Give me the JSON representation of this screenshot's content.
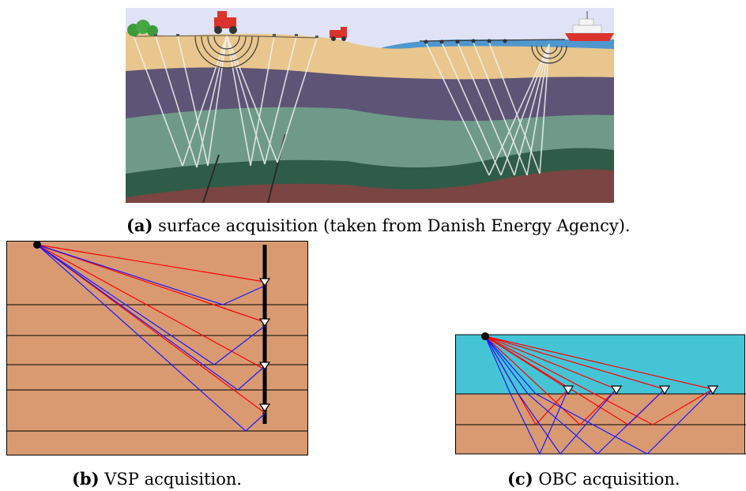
{
  "figures": {
    "a": {
      "label": "(a)",
      "text": "surface acquisition (taken from Danish Energy Agency)."
    },
    "b": {
      "label": "(b)",
      "text": "VSP acquisition."
    },
    "c": {
      "label": "(c)",
      "text": "OBC acquisition."
    }
  },
  "colors": {
    "sky": "#dfe3f5",
    "sea": "#4f97cf",
    "sand": "#e8c68d",
    "purple": "#5e5476",
    "green": "#6f9a89",
    "dark_green": "#2f5c48",
    "red_earth": "#7a4542",
    "ray_white": "#f2f2f2",
    "earth_brown": "#d99a72",
    "water_cyan": "#45c4d6",
    "ray_red": "#ff0000",
    "ray_blue": "#1a1aff"
  },
  "icons": [
    "tractor-icon",
    "truck-icon",
    "ship-icon",
    "tree-icon",
    "source-dot-icon",
    "receiver-triangle-icon"
  ]
}
